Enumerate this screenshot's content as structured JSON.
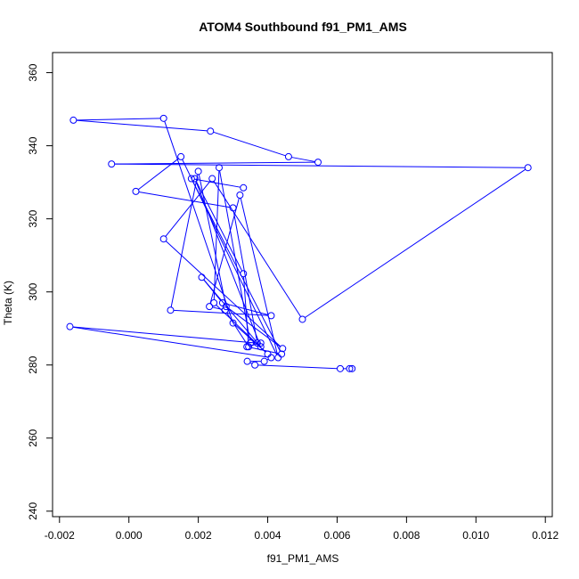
{
  "chart_data": {
    "type": "line",
    "title": "ATOM4 Southbound f91_PM1_AMS",
    "xlabel": "f91_PM1_AMS",
    "ylabel": "Theta (K)",
    "xlim": [
      -0.0022,
      0.0122
    ],
    "ylim": [
      238.5,
      365.5
    ],
    "x_ticks": [
      -0.002,
      0.0,
      0.002,
      0.004,
      0.006,
      0.008,
      0.01,
      0.012
    ],
    "x_tick_labels": [
      "-0.002",
      "0.000",
      "0.002",
      "0.004",
      "0.006",
      "0.008",
      "0.010",
      "0.012"
    ],
    "y_ticks": [
      240,
      260,
      280,
      300,
      320,
      340,
      360
    ],
    "y_tick_labels": [
      "240",
      "260",
      "280",
      "300",
      "320",
      "340",
      "360"
    ],
    "grid": false,
    "series": [
      {
        "color": "#0000ff",
        "marker": "open-circle",
        "x": [
          0.00643,
          0.00636,
          0.00609,
          0.00363,
          0.00341,
          0.0039,
          0.0041,
          -0.0017,
          0.0037,
          0.003,
          0.0002,
          0.0015,
          0.0043,
          0.0032,
          0.00232,
          0.00277,
          0.00345,
          0.0033,
          0.0019,
          0.0038,
          0.0021,
          0.0027,
          0.0041,
          0.0012,
          0.002,
          0.0028,
          0.00443,
          0.001,
          0.0024,
          0.005,
          0.0115,
          -0.0005,
          0.00545,
          0.0046,
          0.00235,
          -0.0016,
          0.001,
          0.003,
          0.004,
          0.00245,
          0.0026,
          0.0035,
          0.0038,
          0.0034,
          0.0044,
          0.0018,
          0.0033
        ],
        "y": [
          279.0,
          279.0,
          279.0,
          280.0,
          281.0,
          281.0,
          282.0,
          290.5,
          286.0,
          323.0,
          327.5,
          337.0,
          282.0,
          326.5,
          296.0,
          295.0,
          285.0,
          305.0,
          331.0,
          285.0,
          304.0,
          297.0,
          293.5,
          295.0,
          333.0,
          296.0,
          284.5,
          314.5,
          331.0,
          292.5,
          334.0,
          335.0,
          335.5,
          337.0,
          344.0,
          347.0,
          347.5,
          291.5,
          283.0,
          297.0,
          334.0,
          286.0,
          286.0,
          285.0,
          283.0,
          331.0,
          328.5
        ]
      }
    ]
  }
}
